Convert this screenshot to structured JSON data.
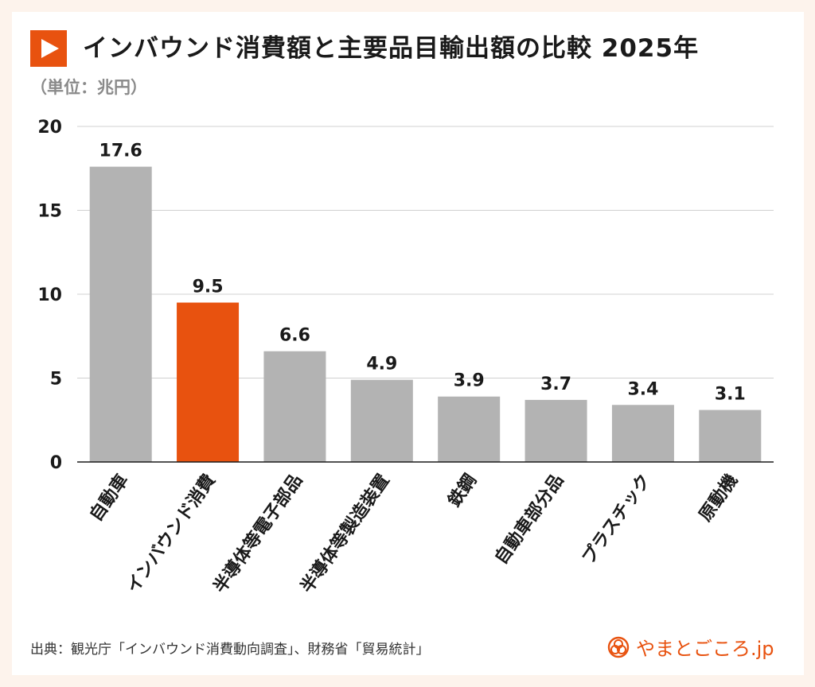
{
  "title": "インバウンド消費額と主要品目輸出額の比較 2025年",
  "unit_label": "（単位：兆円）",
  "source": "出典：観光庁「インバウンド消費動向調査」、財務省「貿易統計」",
  "logo_text": "やまとごころ.jp",
  "colors": {
    "accent": "#e8520f",
    "bar": "#b3b3b3",
    "background": "#fdf3ec"
  },
  "chart_data": {
    "type": "bar",
    "categories": [
      "自動車",
      "インバウンド消費",
      "半導体等電子部品",
      "半導体等製造装置",
      "鉄鋼",
      "自動車部分品",
      "プラスチック",
      "原動機"
    ],
    "values": [
      17.6,
      9.5,
      6.6,
      4.9,
      3.9,
      3.7,
      3.4,
      3.1
    ],
    "value_labels": [
      "17.6",
      "9.5",
      "6.6",
      "4.9",
      "3.9",
      "3.7",
      "3.4",
      "3.1"
    ],
    "highlight": "インバウンド消費",
    "ylim": [
      0,
      20
    ],
    "yticks": [
      0,
      5,
      10,
      15,
      20
    ],
    "ytick_labels": [
      "0",
      "5",
      "10",
      "15",
      "20"
    ],
    "grid": true,
    "legend": "none"
  }
}
